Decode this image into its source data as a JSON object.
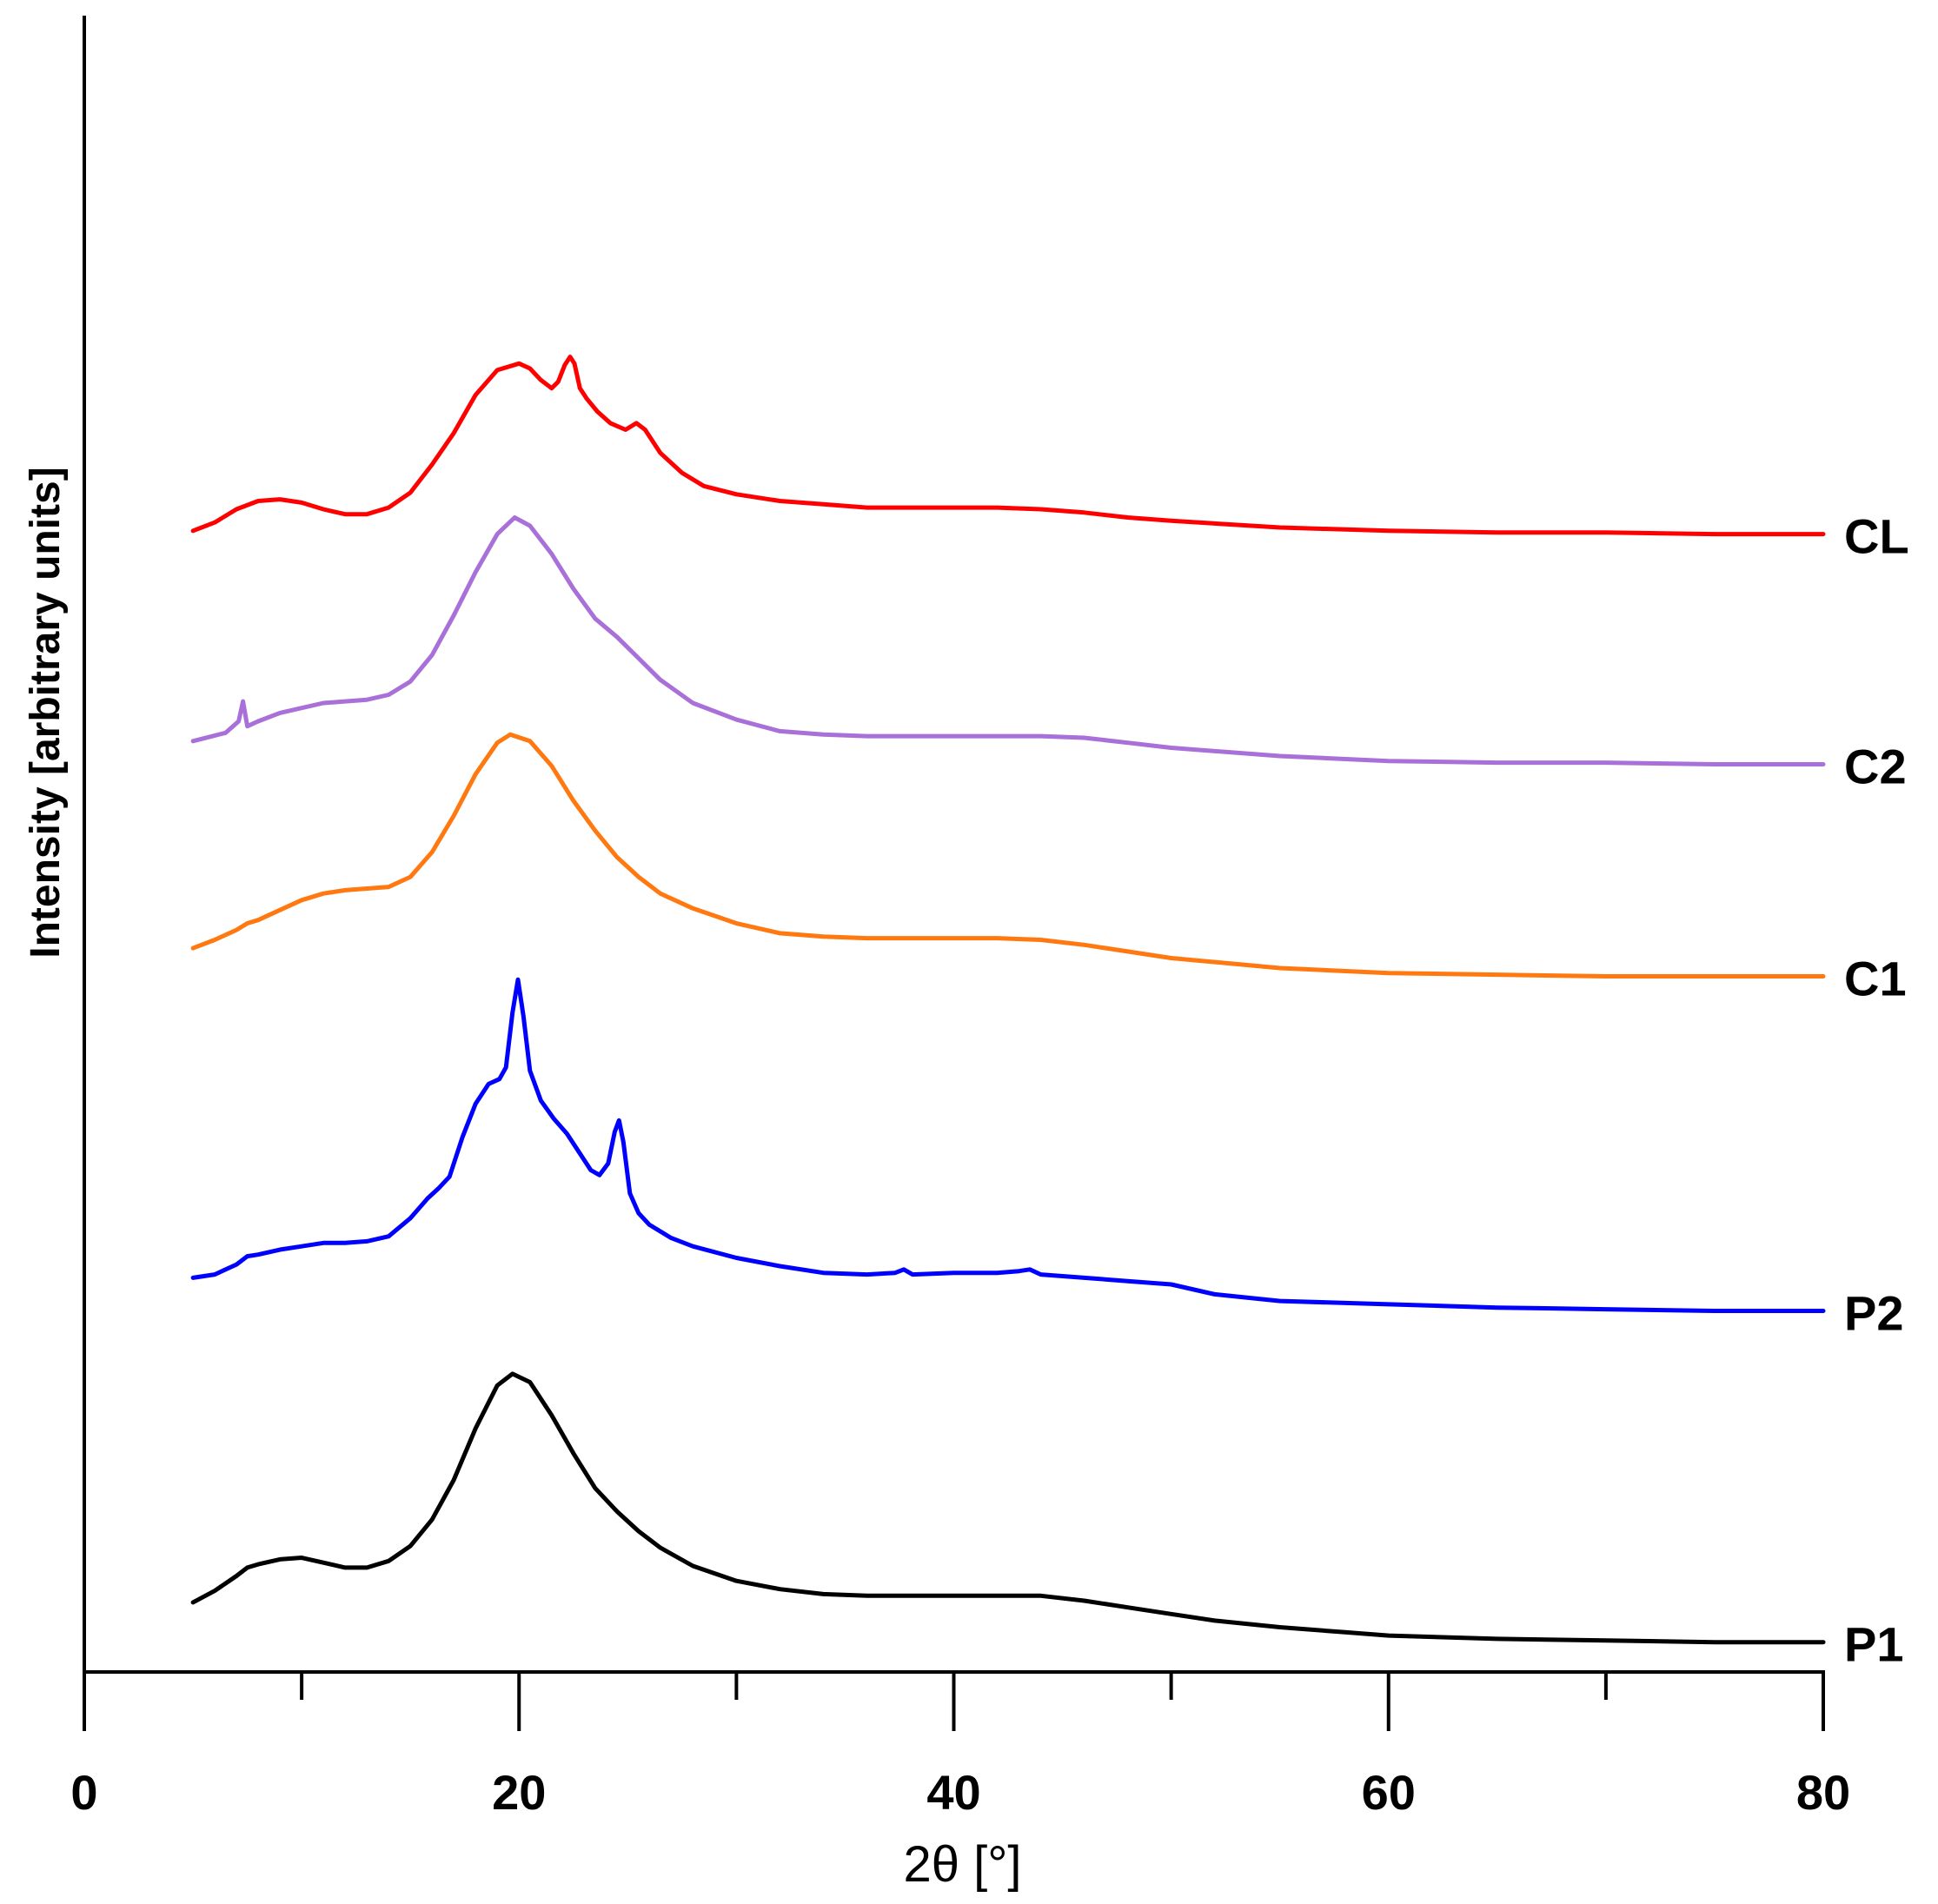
{
  "chart_data": {
    "type": "line",
    "title": "",
    "xlabel": "2θ [°]",
    "ylabel": "Intensity [arbitrary units]",
    "xlim": [
      0,
      80
    ],
    "ylim": [
      0,
      1
    ],
    "x_ticks": [
      0,
      20,
      40,
      60,
      80
    ],
    "x_tick_labels": [
      "0",
      "20",
      "40",
      "60",
      "80"
    ],
    "x_minor_ticks": [
      10,
      30,
      50,
      70
    ],
    "grid": false,
    "legend": "labels at right end of each curve",
    "series": [
      {
        "name": "CL",
        "label": "CL",
        "color": "#ff0000",
        "points": [
          [
            5,
            0.689
          ],
          [
            6,
            0.694
          ],
          [
            7,
            0.702
          ],
          [
            8,
            0.707
          ],
          [
            9,
            0.708
          ],
          [
            10,
            0.706
          ],
          [
            11,
            0.702
          ],
          [
            12,
            0.699
          ],
          [
            13,
            0.699
          ],
          [
            14,
            0.703
          ],
          [
            15,
            0.712
          ],
          [
            16,
            0.729
          ],
          [
            17,
            0.748
          ],
          [
            18,
            0.771
          ],
          [
            19,
            0.786
          ],
          [
            20,
            0.79
          ],
          [
            20.5,
            0.787
          ],
          [
            21,
            0.78
          ],
          [
            21.5,
            0.775
          ],
          [
            21.8,
            0.779
          ],
          [
            22.1,
            0.789
          ],
          [
            22.35,
            0.794
          ],
          [
            22.55,
            0.79
          ],
          [
            22.8,
            0.775
          ],
          [
            23.1,
            0.769
          ],
          [
            23.6,
            0.761
          ],
          [
            24.2,
            0.754
          ],
          [
            24.9,
            0.75
          ],
          [
            25.4,
            0.754
          ],
          [
            25.8,
            0.75
          ],
          [
            26.5,
            0.736
          ],
          [
            27.5,
            0.724
          ],
          [
            28.5,
            0.716
          ],
          [
            30,
            0.711
          ],
          [
            32,
            0.707
          ],
          [
            34,
            0.705
          ],
          [
            36,
            0.703
          ],
          [
            38,
            0.703
          ],
          [
            40,
            0.703
          ],
          [
            42,
            0.703
          ],
          [
            44,
            0.702
          ],
          [
            46,
            0.7
          ],
          [
            48,
            0.697
          ],
          [
            50,
            0.695
          ],
          [
            55,
            0.691
          ],
          [
            60,
            0.689
          ],
          [
            65,
            0.688
          ],
          [
            70,
            0.688
          ],
          [
            75,
            0.687
          ],
          [
            80,
            0.687
          ]
        ]
      },
      {
        "name": "C2",
        "label": "C2",
        "color": "#a870d8",
        "points": [
          [
            5,
            0.562
          ],
          [
            6.5,
            0.567
          ],
          [
            7.1,
            0.574
          ],
          [
            7.3,
            0.586
          ],
          [
            7.5,
            0.571
          ],
          [
            8,
            0.574
          ],
          [
            9,
            0.579
          ],
          [
            10,
            0.582
          ],
          [
            11,
            0.585
          ],
          [
            12,
            0.586
          ],
          [
            13,
            0.587
          ],
          [
            14,
            0.59
          ],
          [
            15,
            0.598
          ],
          [
            16,
            0.614
          ],
          [
            17,
            0.638
          ],
          [
            18,
            0.664
          ],
          [
            19,
            0.687
          ],
          [
            19.8,
            0.697
          ],
          [
            20.5,
            0.692
          ],
          [
            21.5,
            0.675
          ],
          [
            22.5,
            0.654
          ],
          [
            23.5,
            0.636
          ],
          [
            24.5,
            0.625
          ],
          [
            25.5,
            0.612
          ],
          [
            26.5,
            0.599
          ],
          [
            28,
            0.585
          ],
          [
            30,
            0.575
          ],
          [
            32,
            0.568
          ],
          [
            34,
            0.566
          ],
          [
            36,
            0.565
          ],
          [
            38,
            0.565
          ],
          [
            40,
            0.565
          ],
          [
            42,
            0.565
          ],
          [
            44,
            0.565
          ],
          [
            46,
            0.564
          ],
          [
            48,
            0.561
          ],
          [
            50,
            0.558
          ],
          [
            55,
            0.553
          ],
          [
            60,
            0.55
          ],
          [
            65,
            0.549
          ],
          [
            70,
            0.549
          ],
          [
            75,
            0.548
          ],
          [
            80,
            0.548
          ]
        ]
      },
      {
        "name": "C1",
        "label": "C1",
        "color": "#ff7810",
        "points": [
          [
            5,
            0.437
          ],
          [
            6,
            0.442
          ],
          [
            7,
            0.448
          ],
          [
            7.5,
            0.452
          ],
          [
            8,
            0.454
          ],
          [
            9,
            0.46
          ],
          [
            10,
            0.466
          ],
          [
            11,
            0.47
          ],
          [
            12,
            0.472
          ],
          [
            13,
            0.473
          ],
          [
            14,
            0.474
          ],
          [
            15,
            0.48
          ],
          [
            16,
            0.495
          ],
          [
            17,
            0.517
          ],
          [
            18,
            0.542
          ],
          [
            19,
            0.561
          ],
          [
            19.6,
            0.566
          ],
          [
            20.5,
            0.562
          ],
          [
            21.5,
            0.547
          ],
          [
            22.5,
            0.526
          ],
          [
            23.5,
            0.508
          ],
          [
            24.5,
            0.492
          ],
          [
            25.5,
            0.48
          ],
          [
            26.5,
            0.47
          ],
          [
            28,
            0.461
          ],
          [
            30,
            0.452
          ],
          [
            32,
            0.446
          ],
          [
            34,
            0.444
          ],
          [
            36,
            0.443
          ],
          [
            38,
            0.443
          ],
          [
            40,
            0.443
          ],
          [
            42,
            0.443
          ],
          [
            44,
            0.442
          ],
          [
            46,
            0.439
          ],
          [
            48,
            0.435
          ],
          [
            50,
            0.431
          ],
          [
            55,
            0.425
          ],
          [
            60,
            0.422
          ],
          [
            65,
            0.421
          ],
          [
            70,
            0.42
          ],
          [
            75,
            0.42
          ],
          [
            80,
            0.42
          ]
        ]
      },
      {
        "name": "P2",
        "label": "P2",
        "color": "#0000ff",
        "points": [
          [
            5,
            0.238
          ],
          [
            6,
            0.24
          ],
          [
            7,
            0.246
          ],
          [
            7.5,
            0.251
          ],
          [
            8,
            0.252
          ],
          [
            9,
            0.255
          ],
          [
            10,
            0.257
          ],
          [
            11,
            0.259
          ],
          [
            12,
            0.259
          ],
          [
            13,
            0.26
          ],
          [
            14,
            0.263
          ],
          [
            15,
            0.274
          ],
          [
            15.8,
            0.286
          ],
          [
            16.3,
            0.292
          ],
          [
            16.8,
            0.299
          ],
          [
            17.4,
            0.323
          ],
          [
            18,
            0.343
          ],
          [
            18.6,
            0.355
          ],
          [
            19.1,
            0.358
          ],
          [
            19.4,
            0.365
          ],
          [
            19.7,
            0.398
          ],
          [
            19.95,
            0.418
          ],
          [
            20.2,
            0.396
          ],
          [
            20.5,
            0.363
          ],
          [
            21,
            0.345
          ],
          [
            21.6,
            0.334
          ],
          [
            22.2,
            0.325
          ],
          [
            22.8,
            0.313
          ],
          [
            23.3,
            0.303
          ],
          [
            23.7,
            0.3
          ],
          [
            24.1,
            0.307
          ],
          [
            24.4,
            0.326
          ],
          [
            24.6,
            0.333
          ],
          [
            24.8,
            0.32
          ],
          [
            25.1,
            0.289
          ],
          [
            25.5,
            0.277
          ],
          [
            26,
            0.27
          ],
          [
            27,
            0.262
          ],
          [
            28,
            0.257
          ],
          [
            30,
            0.25
          ],
          [
            32,
            0.245
          ],
          [
            34,
            0.241
          ],
          [
            36,
            0.24
          ],
          [
            37.3,
            0.241
          ],
          [
            37.7,
            0.243
          ],
          [
            38.1,
            0.24
          ],
          [
            40,
            0.241
          ],
          [
            42,
            0.241
          ],
          [
            43,
            0.242
          ],
          [
            43.5,
            0.243
          ],
          [
            44,
            0.24
          ],
          [
            46,
            0.238
          ],
          [
            48,
            0.236
          ],
          [
            50,
            0.234
          ],
          [
            52,
            0.228
          ],
          [
            55,
            0.224
          ],
          [
            60,
            0.222
          ],
          [
            65,
            0.22
          ],
          [
            70,
            0.219
          ],
          [
            75,
            0.218
          ],
          [
            80,
            0.218
          ]
        ]
      },
      {
        "name": "P1",
        "label": "P1",
        "color": "#000000",
        "points": [
          [
            5,
            0.042
          ],
          [
            6,
            0.049
          ],
          [
            7,
            0.058
          ],
          [
            7.5,
            0.063
          ],
          [
            8,
            0.065
          ],
          [
            9,
            0.068
          ],
          [
            10,
            0.069
          ],
          [
            11,
            0.066
          ],
          [
            12,
            0.063
          ],
          [
            13,
            0.063
          ],
          [
            14,
            0.067
          ],
          [
            15,
            0.076
          ],
          [
            16,
            0.092
          ],
          [
            17,
            0.116
          ],
          [
            18,
            0.147
          ],
          [
            19,
            0.173
          ],
          [
            19.7,
            0.18
          ],
          [
            20.5,
            0.175
          ],
          [
            21.5,
            0.155
          ],
          [
            22.5,
            0.132
          ],
          [
            23.5,
            0.111
          ],
          [
            24.5,
            0.097
          ],
          [
            25.5,
            0.085
          ],
          [
            26.5,
            0.075
          ],
          [
            28,
            0.064
          ],
          [
            30,
            0.055
          ],
          [
            32,
            0.05
          ],
          [
            34,
            0.047
          ],
          [
            36,
            0.046
          ],
          [
            38,
            0.046
          ],
          [
            40,
            0.046
          ],
          [
            42,
            0.046
          ],
          [
            44,
            0.046
          ],
          [
            46,
            0.043
          ],
          [
            48,
            0.039
          ],
          [
            50,
            0.035
          ],
          [
            52,
            0.031
          ],
          [
            55,
            0.027
          ],
          [
            58,
            0.024
          ],
          [
            60,
            0.022
          ],
          [
            65,
            0.02
          ],
          [
            70,
            0.019
          ],
          [
            75,
            0.018
          ],
          [
            80,
            0.018
          ]
        ]
      }
    ]
  }
}
